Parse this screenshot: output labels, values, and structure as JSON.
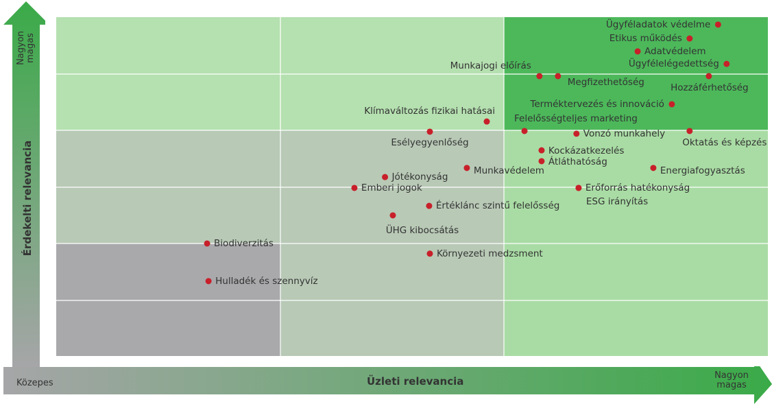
{
  "chart_data": {
    "type": "scatter",
    "xlabel": "Üzleti relevancia",
    "ylabel": "Érdekelti relevancia",
    "x_low_label": "Közepes",
    "x_high_label": "Nagyon magas",
    "y_high_label": "Nagyon magas",
    "xlim": [
      0,
      10
    ],
    "ylim": [
      0,
      10
    ],
    "color": "#c8202a",
    "labels": [
      "Ügyféladatok védelme",
      "Etikus működés",
      "Adatvédelem",
      "Ügyfélelégedettség",
      "Munkajogi előírás",
      "Megfizethetőség",
      "Hozzáférhetőség",
      "Terméktervezés és innováció",
      "Klímaváltozás fizikai hatásai",
      "Felelősségteljes marketing",
      "Esélyegyenlőség",
      "Vonzó munkahely",
      "Oktatás és képzés",
      "Kockázatkezelés",
      "Átláthatóság",
      "Energiafogyasztás",
      "Munkavédelem",
      "Jótékonyság",
      "Emberi jogok",
      "Erőforrás hatékonyság",
      "ESG irányítás",
      "Értéklánc szintű felelősség",
      "ÜHG kibocsátás",
      "Biodiverzitás",
      "Környezeti medzsment",
      "Hulladék és szennyvíz"
    ],
    "x": [
      9.3,
      8.9,
      8.17,
      9.42,
      6.79,
      7.05,
      9.17,
      8.65,
      6.05,
      6.58,
      5.25,
      7.31,
      8.9,
      6.82,
      6.82,
      8.39,
      5.77,
      4.62,
      4.19,
      7.34,
      7.34,
      5.24,
      4.73,
      2.12,
      5.25,
      2.14
    ],
    "y": [
      9.78,
      9.37,
      8.99,
      8.62,
      8.26,
      8.26,
      8.26,
      7.43,
      6.92,
      6.64,
      6.62,
      6.56,
      6.64,
      6.07,
      5.75,
      5.55,
      5.55,
      5.28,
      4.96,
      4.96,
      4.96,
      4.43,
      4.15,
      3.32,
      3.02,
      2.21
    ]
  }
}
